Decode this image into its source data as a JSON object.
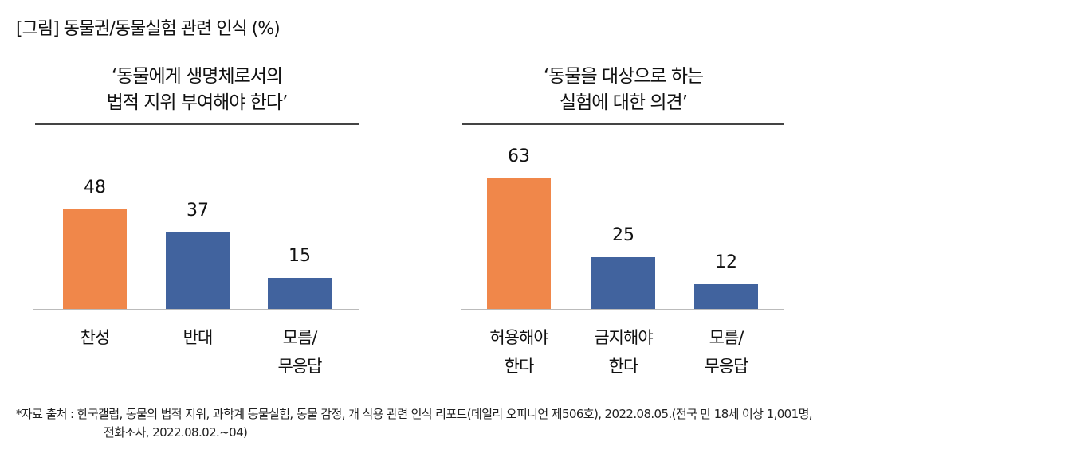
{
  "title": "[그림] 동물권/동물실험 관련 인식 (%)",
  "colors": {
    "highlight": "#F0874A",
    "base": "#41639E"
  },
  "chart_data": [
    {
      "type": "bar",
      "title": "‘동물에게 생명체로서의\n법적 지위 부여해야 한다’",
      "categories": [
        "찬성",
        "반대",
        "모름/\n무응답"
      ],
      "values": [
        48,
        37,
        15
      ],
      "labels": [
        "48",
        "37",
        "15"
      ],
      "highlight": [
        true,
        false,
        false
      ],
      "ylim": [
        0,
        63
      ]
    },
    {
      "type": "bar",
      "title": "‘동물을 대상으로 하는\n실험에 대한 의견’",
      "categories": [
        "허용해야\n한다",
        "금지해야\n한다",
        "모름/\n무응답"
      ],
      "values": [
        63,
        25,
        12
      ],
      "labels": [
        "63",
        "25",
        "12"
      ],
      "highlight": [
        true,
        false,
        false
      ],
      "ylim": [
        0,
        63
      ]
    }
  ],
  "source_line1": "*자료 출처 : 한국갤럽, 동물의 법적 지위, 과학계 동물실험, 동물 감정, 개 식용 관련 인식 리포트(데일리 오피니언 제506호), 2022.08.05.(전국 만 18세 이상 1,001명,",
  "source_line2": "전화조사, 2022.08.02.~04)"
}
